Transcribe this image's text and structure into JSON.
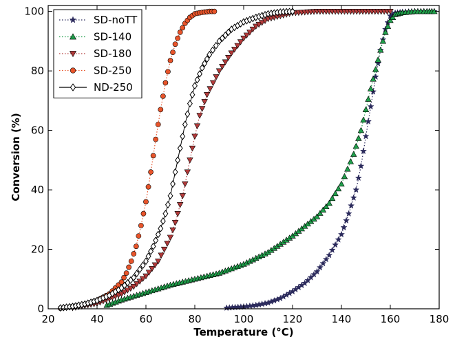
{
  "chart_data": {
    "type": "scatter",
    "title": "",
    "xlabel": "Temperature (°C)",
    "ylabel": "Conversion (%)",
    "xlim": [
      20,
      180
    ],
    "ylim": [
      0,
      102
    ],
    "xticks": [
      20,
      40,
      60,
      80,
      100,
      120,
      140,
      160,
      180
    ],
    "yticks": [
      0,
      20,
      40,
      60,
      80,
      100
    ],
    "grid": false,
    "legend_position": "top-left",
    "series": [
      {
        "name": "SD-noTT",
        "marker": "star",
        "color": "#2b2a5c",
        "line_style": "dotted",
        "x": [
          93,
          100,
          105,
          110,
          115,
          120,
          125,
          130,
          135,
          140,
          143,
          146,
          148,
          150,
          152,
          154,
          156,
          158,
          160,
          162,
          165,
          170,
          175,
          178
        ],
        "y": [
          0.3,
          0.7,
          1.2,
          2.0,
          3.5,
          5.8,
          8.6,
          12.5,
          18.0,
          25.0,
          32.0,
          40.0,
          48.0,
          58.0,
          68.0,
          78.0,
          87.0,
          94.0,
          98.5,
          99.5,
          99.8,
          100,
          100,
          100
        ]
      },
      {
        "name": "SD-140",
        "marker": "triangle-up",
        "color": "#1f9e4a",
        "line_style": "dotted",
        "x": [
          44,
          50,
          60,
          70,
          80,
          90,
          100,
          110,
          120,
          130,
          135,
          140,
          145,
          148,
          150,
          152,
          154,
          156,
          158,
          160,
          162,
          165,
          170,
          175,
          178
        ],
        "y": [
          1.2,
          3.0,
          5.5,
          8.0,
          10.0,
          12.0,
          15.0,
          19.0,
          24.5,
          31.0,
          35.5,
          42.0,
          52.0,
          60.0,
          67.0,
          74.0,
          80.5,
          87.0,
          93.0,
          97.0,
          99.0,
          99.6,
          100,
          100,
          100
        ]
      },
      {
        "name": "SD-180",
        "marker": "triangle-down",
        "color": "#b23a3a",
        "line_style": "dotted",
        "x": [
          30,
          40,
          50,
          55,
          60,
          65,
          70,
          72,
          75,
          78,
          80,
          82,
          85,
          90,
          95,
          100,
          105,
          110,
          120,
          130,
          140,
          150,
          160
        ],
        "y": [
          0.3,
          1.8,
          5.0,
          7.5,
          11.0,
          16.0,
          24.0,
          29.0,
          38.0,
          50.0,
          58.0,
          65.0,
          72.0,
          80.0,
          86.0,
          91.0,
          95.0,
          97.5,
          99.5,
          100,
          100,
          100,
          100
        ]
      },
      {
        "name": "SD-250",
        "marker": "circle",
        "color": "#e8542a",
        "line_style": "dotted",
        "x": [
          25,
          30,
          35,
          40,
          45,
          50,
          52,
          54,
          56,
          58,
          60,
          62,
          64,
          66,
          68,
          70,
          72,
          74,
          76,
          78,
          80,
          83,
          86,
          88
        ],
        "y": [
          0.2,
          0.8,
          1.5,
          2.8,
          5.0,
          9.0,
          12.0,
          16.0,
          21.0,
          28.0,
          36.0,
          46.0,
          57.0,
          67.0,
          76.0,
          83.5,
          89.0,
          93.0,
          96.0,
          98.0,
          99.2,
          99.7,
          100,
          100
        ]
      },
      {
        "name": "ND-250",
        "marker": "diamond-open",
        "color": "#000000",
        "line_style": "solid",
        "x": [
          25,
          30,
          35,
          40,
          45,
          50,
          55,
          60,
          63,
          66,
          68,
          70,
          72,
          74,
          76,
          78,
          80,
          83,
          86,
          90,
          95,
          100,
          105,
          110,
          115,
          120
        ],
        "y": [
          0.3,
          0.8,
          1.6,
          2.8,
          4.5,
          7.0,
          10.5,
          16.0,
          21.0,
          27.0,
          32.0,
          38.0,
          46.0,
          54.0,
          62.0,
          69.0,
          75.0,
          81.0,
          85.5,
          90.0,
          94.0,
          96.5,
          98.0,
          99.2,
          99.8,
          100
        ]
      }
    ]
  }
}
